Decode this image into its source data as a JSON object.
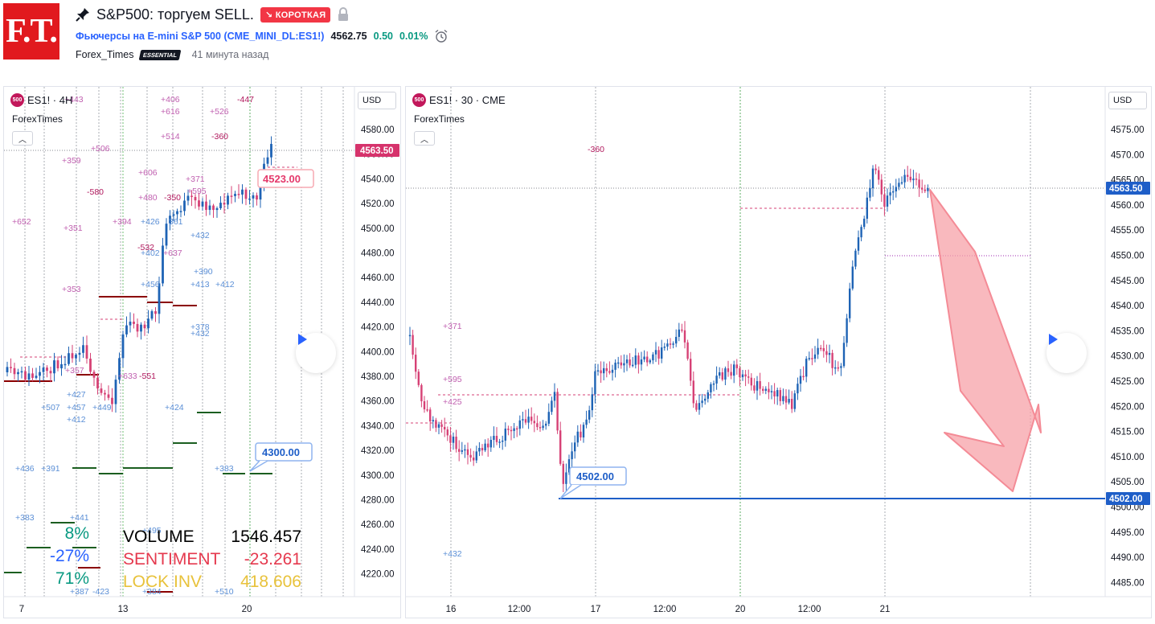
{
  "header": {
    "logo_text": "F.T.",
    "title": "S&P500: торгуем SELL.",
    "badge": "↘ КОРОТКАЯ",
    "symbol_full": "Фьючерсы на E-mini S&P 500",
    "symbol_code": "(CME_MINI_DL:ES1!)",
    "price": "4562.75",
    "change": "0.50",
    "change_pct": "0.01%",
    "author": "Forex_Times",
    "plan": "ESSENTIAL",
    "time_ago": "41 минута назад"
  },
  "icons": {
    "pin": "pin-icon",
    "lock": "lock-icon",
    "alarm": "alarm-icon",
    "play": "play-icon",
    "chevron": "chevron-up-icon"
  },
  "colors": {
    "up": "#089981",
    "down": "#f23645",
    "candle_up": "#1e63b5",
    "candle_down": "#d64175",
    "label_pink": "#c060b0",
    "label_blue": "#5b8fd6",
    "level_blue": "#1e5ec8",
    "arrow": "#f7a1a8"
  },
  "left_chart": {
    "legend_icon": "500",
    "legend": "ES1! · 4Н",
    "author": "ForexTimes",
    "currency": "USD",
    "y_ticks": [
      "4580.00",
      "4560.00",
      "4540.00",
      "4520.00",
      "4500.00",
      "4480.00",
      "4460.00",
      "4440.00",
      "4420.00",
      "4400.00",
      "4380.00",
      "4360.00",
      "4340.00",
      "4320.00",
      "4300.00",
      "4280.00",
      "4260.00",
      "4240.00",
      "4220.00"
    ],
    "x_ticks": [
      "7",
      "13",
      "20"
    ],
    "price_tag": "4563.50",
    "callout_upper": "4523.00",
    "callout_lower": "4300.00",
    "labels_pink": [
      "+443",
      "+406",
      "+616",
      "+526",
      "-447",
      "+514",
      "-360",
      "+506",
      "+359",
      "+606",
      "+371",
      "+595",
      "-580",
      "+480",
      "-350",
      "+652",
      "+394",
      "+351",
      "-532",
      "+637",
      "+353",
      "+633",
      "-551"
    ],
    "labels_blue": [
      "+426",
      "361",
      "+432",
      "+402",
      "+390",
      "+456",
      "+413",
      "+412",
      "+378",
      "+432",
      "+427",
      "+507",
      "+457",
      "+449",
      "+412",
      "+424",
      "+436",
      "+391",
      "+383",
      "+383",
      "+441",
      "+495",
      "+387",
      "-423",
      "+384",
      "+510",
      "+357"
    ],
    "stats_pct": [
      "8%",
      "-27%",
      "71%"
    ],
    "stats": [
      {
        "label": "VOLUME",
        "value": "1546.457"
      },
      {
        "label": "SENTIMENT",
        "value": "-23.261"
      },
      {
        "label": "LOCK INV",
        "value": "418.606"
      }
    ]
  },
  "right_chart": {
    "legend_icon": "500",
    "legend": "ES1! · 30 · CME",
    "author": "ForexTimes",
    "currency": "USD",
    "y_ticks": [
      "4575.00",
      "4570.00",
      "4565.00",
      "4560.00",
      "4555.00",
      "4550.00",
      "4545.00",
      "4540.00",
      "4535.00",
      "4530.00",
      "4525.00",
      "4520.00",
      "4515.00",
      "4510.00",
      "4505.00",
      "4500.00",
      "4495.00",
      "4490.00",
      "4485.00"
    ],
    "x_ticks": [
      "16",
      "12:00",
      "17",
      "12:00",
      "20",
      "12:00",
      "21"
    ],
    "price_tag": "4563.50",
    "level_tag": "4502.00",
    "callout": "4502.00",
    "labels_pink": [
      "-360",
      "+371",
      "+595",
      "+425"
    ],
    "labels_blue": [
      "+432"
    ]
  }
}
